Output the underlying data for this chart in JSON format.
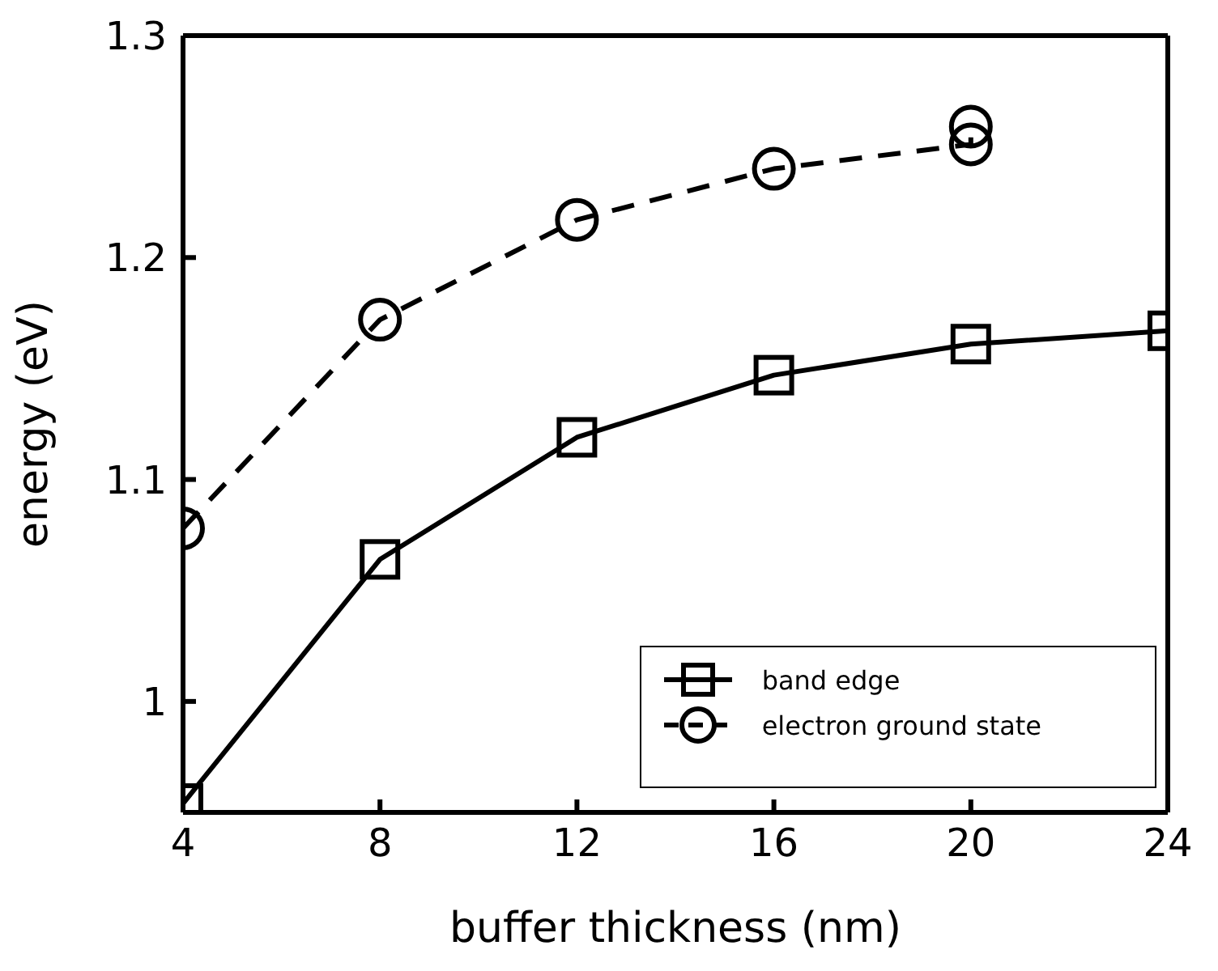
{
  "chart_data": {
    "type": "line",
    "xlabel": "buffer thickness (nm)",
    "ylabel": "energy (eV)",
    "xlim": [
      4,
      24
    ],
    "xticks": [
      4,
      8,
      12,
      16,
      20,
      24
    ],
    "ylim": [
      0.95,
      1.3
    ],
    "yticks": [
      1,
      1.1,
      1.2,
      1.3
    ],
    "legend": "bottom right",
    "series": [
      {
        "name": "band edge",
        "color": "#000000",
        "marker": "square",
        "line_style": "solid",
        "x": [
          4,
          8,
          12,
          16,
          20,
          24
        ],
        "values": [
          0.954,
          1.064,
          1.119,
          1.147,
          1.161,
          1.167
        ]
      },
      {
        "name": "electron ground state",
        "color": "#000000",
        "marker": "circle",
        "line_style": "dashed",
        "x": [
          4,
          8,
          12,
          16,
          20,
          20
        ],
        "values": [
          1.078,
          1.172,
          1.217,
          1.24,
          1.251,
          1.259
        ]
      }
    ]
  }
}
